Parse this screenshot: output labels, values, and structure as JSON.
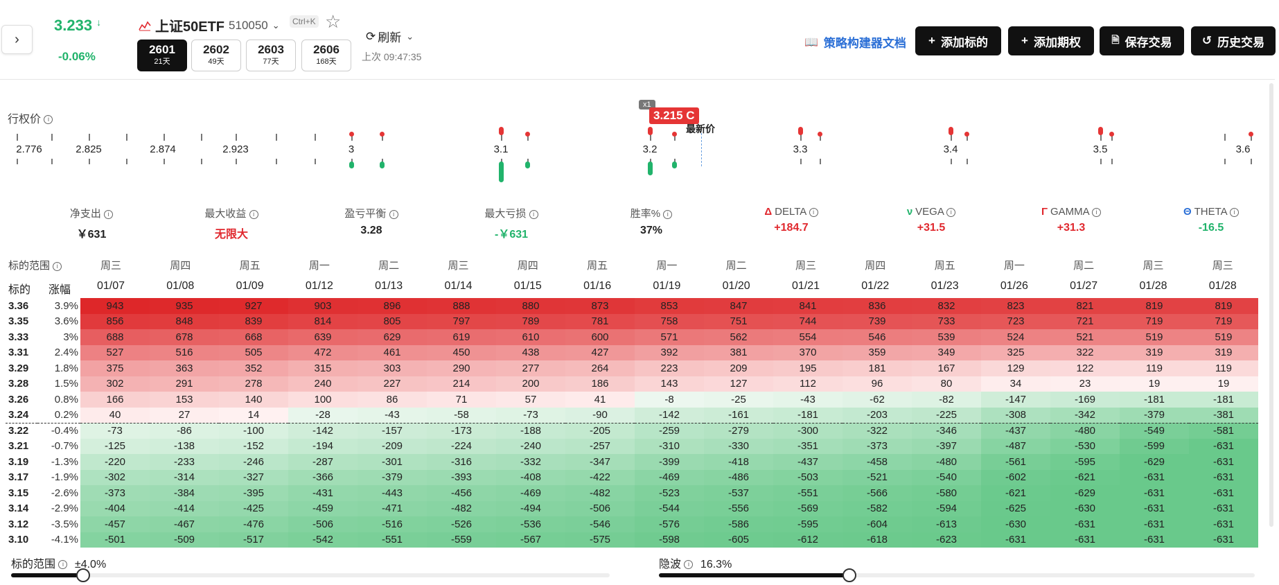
{
  "header": {
    "price": "3.233",
    "price_arrow": "↓",
    "change": "-0.06%",
    "underlying_name": "上证50ETF",
    "underlying_code": "510050",
    "shortcut": "Ctrl+K",
    "refresh_label": "刷新",
    "last_update": "上次 09:47:35",
    "expiries": [
      {
        "code": "2601",
        "days": "21天",
        "active": true
      },
      {
        "code": "2602",
        "days": "49天"
      },
      {
        "code": "2603",
        "days": "77天"
      },
      {
        "code": "2606",
        "days": "168天"
      }
    ],
    "docs_link": "策略构建器文档",
    "buttons": {
      "add_underlying": "添加标的",
      "add_option": "添加期权",
      "save": "保存交易",
      "history": "历史交易"
    }
  },
  "strike_chart": {
    "title": "行权价",
    "labels": [
      "2.776",
      "2.825",
      "2.874",
      "2.923",
      "3",
      "3.1",
      "3.2",
      "3.3",
      "3.4",
      "3.5",
      "3.6"
    ],
    "position_badge": "x1",
    "position_label": "3.215 C",
    "latest_price_label": "最新价"
  },
  "stats": [
    {
      "label": "净支出",
      "value": "￥631",
      "color": "#222"
    },
    {
      "label": "最大收益",
      "value": "无限大",
      "color": "#e0282e"
    },
    {
      "label": "盈亏平衡",
      "value": "3.28",
      "color": "#222"
    },
    {
      "label": "最大亏损",
      "value": "-￥631",
      "color": "#21b36b"
    },
    {
      "label": "胜率%",
      "value": "37%",
      "color": "#222"
    },
    {
      "label": "DELTA",
      "symbol": "Δ",
      "symbol_color": "#e0282e",
      "value": "+184.7",
      "color": "#e0282e"
    },
    {
      "label": "VEGA",
      "symbol": "ν",
      "symbol_color": "#21b36b",
      "value": "+31.5",
      "color": "#e0282e"
    },
    {
      "label": "GAMMA",
      "symbol": "Γ",
      "symbol_color": "#e0282e",
      "value": "+31.3",
      "color": "#e0282e"
    },
    {
      "label": "THETA",
      "symbol": "Θ",
      "symbol_color": "#2b6fd6",
      "value": "-16.5",
      "color": "#21b36b"
    }
  ],
  "table": {
    "range_label": "标的范围",
    "col_underlying": "标的",
    "col_change": "涨幅",
    "weekdays": [
      "周三",
      "周四",
      "周五",
      "周一",
      "周二",
      "周三",
      "周四",
      "周五",
      "周一",
      "周二",
      "周三",
      "周四",
      "周五",
      "周一",
      "周二",
      "周三",
      "周三"
    ],
    "dates": [
      "01/07",
      "01/08",
      "01/09",
      "01/12",
      "01/13",
      "01/14",
      "01/15",
      "01/16",
      "01/19",
      "01/20",
      "01/21",
      "01/22",
      "01/23",
      "01/26",
      "01/27",
      "01/28",
      "01/28"
    ],
    "rows": [
      {
        "price": "3.36",
        "pct": "3.9%",
        "values": [
          943,
          935,
          927,
          903,
          896,
          888,
          880,
          873,
          853,
          847,
          841,
          836,
          832,
          823,
          821,
          819,
          819
        ]
      },
      {
        "price": "3.35",
        "pct": "3.6%",
        "values": [
          856,
          848,
          839,
          814,
          805,
          797,
          789,
          781,
          758,
          751,
          744,
          739,
          733,
          723,
          721,
          719,
          719
        ]
      },
      {
        "price": "3.33",
        "pct": "3%",
        "values": [
          688,
          678,
          668,
          639,
          629,
          619,
          610,
          600,
          571,
          562,
          554,
          546,
          539,
          524,
          521,
          519,
          519
        ]
      },
      {
        "price": "3.31",
        "pct": "2.4%",
        "values": [
          527,
          516,
          505,
          472,
          461,
          450,
          438,
          427,
          392,
          381,
          370,
          359,
          349,
          325,
          322,
          319,
          319
        ]
      },
      {
        "price": "3.29",
        "pct": "1.8%",
        "values": [
          375,
          363,
          352,
          315,
          303,
          290,
          277,
          264,
          223,
          209,
          195,
          181,
          167,
          129,
          122,
          119,
          119
        ]
      },
      {
        "price": "3.28",
        "pct": "1.5%",
        "values": [
          302,
          291,
          278,
          240,
          227,
          214,
          200,
          186,
          143,
          127,
          112,
          96,
          80,
          34,
          23,
          19,
          19
        ]
      },
      {
        "price": "3.26",
        "pct": "0.8%",
        "values": [
          166,
          153,
          140,
          100,
          86,
          71,
          57,
          41,
          -8,
          -25,
          -43,
          -62,
          -82,
          -147,
          -169,
          -181,
          -181
        ]
      },
      {
        "price": "3.24",
        "pct": "0.2%",
        "values": [
          40,
          27,
          14,
          -28,
          -43,
          -58,
          -73,
          -90,
          -142,
          -161,
          -181,
          -203,
          -225,
          -308,
          -342,
          -379,
          -381
        ]
      },
      {
        "price": "3.22",
        "pct": "-0.4%",
        "values": [
          -73,
          -86,
          -100,
          -142,
          -157,
          -173,
          -188,
          -205,
          -259,
          -279,
          -300,
          -322,
          -346,
          -437,
          -480,
          -549,
          -581
        ]
      },
      {
        "price": "3.21",
        "pct": "-0.7%",
        "values": [
          -125,
          -138,
          -152,
          -194,
          -209,
          -224,
          -240,
          -257,
          -310,
          -330,
          -351,
          -373,
          -397,
          -487,
          -530,
          -599,
          -631
        ]
      },
      {
        "price": "3.19",
        "pct": "-1.3%",
        "values": [
          -220,
          -233,
          -246,
          -287,
          -301,
          -316,
          -332,
          -347,
          -399,
          -418,
          -437,
          -458,
          -480,
          -561,
          -595,
          -629,
          -631
        ]
      },
      {
        "price": "3.17",
        "pct": "-1.9%",
        "values": [
          -302,
          -314,
          -327,
          -366,
          -379,
          -393,
          -408,
          -422,
          -469,
          -486,
          -503,
          -521,
          -540,
          -602,
          -621,
          -631,
          -631
        ]
      },
      {
        "price": "3.15",
        "pct": "-2.6%",
        "values": [
          -373,
          -384,
          -395,
          -431,
          -443,
          -456,
          -469,
          -482,
          -523,
          -537,
          -551,
          -566,
          -580,
          -621,
          -629,
          -631,
          -631
        ]
      },
      {
        "price": "3.14",
        "pct": "-2.9%",
        "values": [
          -404,
          -414,
          -425,
          -459,
          -471,
          -482,
          -494,
          -506,
          -544,
          -556,
          -569,
          -582,
          -594,
          -625,
          -630,
          -631,
          -631
        ]
      },
      {
        "price": "3.12",
        "pct": "-3.5%",
        "values": [
          -457,
          -467,
          -476,
          -506,
          -516,
          -526,
          -536,
          -546,
          -576,
          -586,
          -595,
          -604,
          -613,
          -630,
          -631,
          -631,
          -631
        ]
      },
      {
        "price": "3.10",
        "pct": "-4.1%",
        "values": [
          -501,
          -509,
          -517,
          -542,
          -551,
          -559,
          -567,
          -575,
          -598,
          -605,
          -612,
          -618,
          -623,
          -631,
          -631,
          -631,
          -631
        ]
      }
    ]
  },
  "sliders": {
    "range": {
      "label": "标的范围",
      "value": "±4.0%",
      "fraction": 0.12
    },
    "iv": {
      "label": "隐波",
      "value": "16.3%",
      "fraction": 0.32
    }
  }
}
